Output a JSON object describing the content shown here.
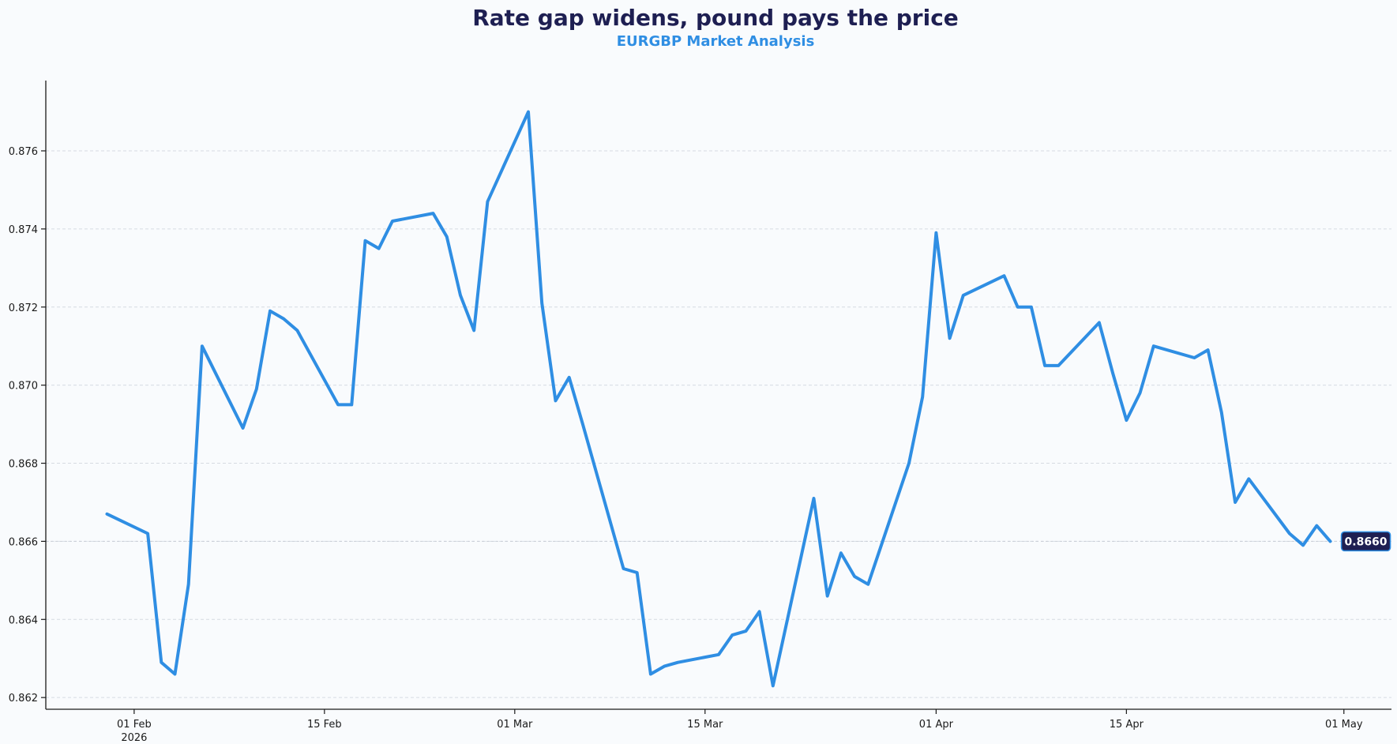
{
  "chart_data": {
    "type": "line",
    "title": "Rate gap widens, pound pays the price",
    "subtitle": "EURGBP Market Analysis",
    "xlabel": "",
    "ylabel": "",
    "ylim": [
      0.8617,
      0.8778
    ],
    "xlim": [
      -6.5,
      92.5
    ],
    "grid": true,
    "y_ticks": [
      "0.862",
      "0.864",
      "0.866",
      "0.868",
      "0.870",
      "0.872",
      "0.874",
      "0.876"
    ],
    "x_ticks": [
      {
        "day": 0,
        "label": "01 Feb",
        "sublabel": "2026"
      },
      {
        "day": 14,
        "label": "15 Feb",
        "sublabel": ""
      },
      {
        "day": 28,
        "label": "01 Mar",
        "sublabel": ""
      },
      {
        "day": 42,
        "label": "15 Mar",
        "sublabel": ""
      },
      {
        "day": 59,
        "label": "01 Apr",
        "sublabel": ""
      },
      {
        "day": 73,
        "label": "15 Apr",
        "sublabel": ""
      },
      {
        "day": 89,
        "label": "01 May",
        "sublabel": ""
      }
    ],
    "last_value_label": "0.8660",
    "line_color": "#2f8ee3",
    "badge_color": "#1e1f52",
    "series": [
      {
        "name": "EURGBP",
        "x": [
          -2,
          1,
          2,
          3,
          4,
          5,
          8,
          9,
          10,
          11,
          12,
          15,
          16,
          17,
          18,
          19,
          22,
          23,
          24,
          25,
          26,
          29,
          30,
          31,
          32,
          33,
          36,
          37,
          38,
          39,
          40,
          43,
          44,
          45,
          46,
          47,
          50,
          51,
          52,
          53,
          54,
          57,
          58,
          59,
          60,
          61,
          64,
          65,
          66,
          67,
          68,
          71,
          72,
          73,
          74,
          75,
          78,
          79,
          80,
          81,
          82,
          85,
          86,
          87,
          88
        ],
        "values": [
          0.8667,
          0.8662,
          0.8629,
          0.8626,
          0.8649,
          0.871,
          0.8689,
          0.8699,
          0.8719,
          0.8717,
          0.8714,
          0.8695,
          0.8695,
          0.8737,
          0.8735,
          0.8742,
          0.8744,
          0.8738,
          0.8723,
          0.8714,
          0.8747,
          0.877,
          0.8721,
          0.8696,
          0.8702,
          0.869,
          0.8653,
          0.8652,
          0.8626,
          0.8628,
          0.8629,
          0.8631,
          0.8636,
          0.8637,
          0.8642,
          0.8623,
          0.8671,
          0.8646,
          0.8657,
          0.8651,
          0.8649,
          0.868,
          0.8697,
          0.8739,
          0.8712,
          0.8723,
          0.8728,
          0.872,
          0.872,
          0.8705,
          0.8705,
          0.8716,
          0.8703,
          0.8691,
          0.8698,
          0.871,
          0.8707,
          0.8709,
          0.8693,
          0.867,
          0.8676,
          0.8662,
          0.8659,
          0.8664,
          0.866
        ]
      }
    ]
  }
}
